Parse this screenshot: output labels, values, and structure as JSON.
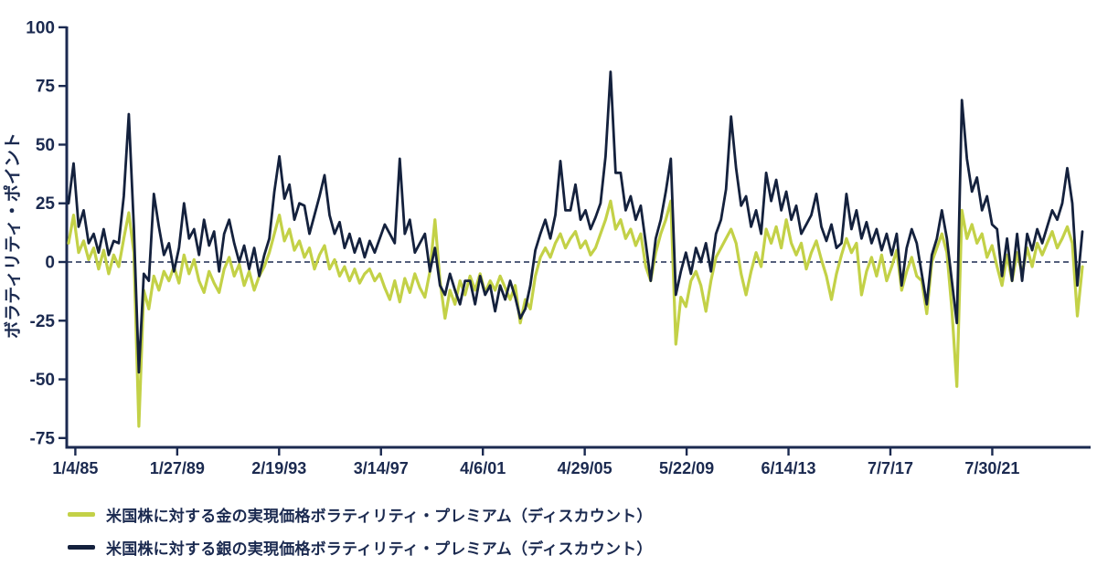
{
  "chart_data": {
    "type": "line",
    "title": "",
    "xlabel": "",
    "ylabel": "ボラティリティ・ポイント",
    "ylim": [
      -75,
      100
    ],
    "yticks": [
      100,
      75,
      50,
      25,
      0,
      -25,
      -50,
      -75
    ],
    "ytick_labels": [
      "100",
      "75",
      "50",
      "25",
      "0",
      "-25",
      "-50",
      "-75"
    ],
    "xtick_labels": [
      "1/4/85",
      "1/27/89",
      "2/19/93",
      "3/14/97",
      "4/6/01",
      "4/29/05",
      "5/22/09",
      "6/14/13",
      "7/7/17",
      "7/30/21"
    ],
    "xtick_years": [
      1985.27,
      1989.33,
      1993.39,
      1997.45,
      2001.51,
      2005.57,
      2009.63,
      2013.69,
      2017.75,
      2021.81
    ],
    "x_start_year": 1985.0,
    "x_step_years": 0.2,
    "grid": false,
    "zero_line_dashed": true,
    "legend_position": "bottom-left",
    "axis_color": "#1b2a50",
    "series": [
      {
        "name": "米国株に対する金の実現価格ボラティリティ・プレミアム（ディスカウント）",
        "color": "#c3d147",
        "values": [
          8,
          20,
          4,
          9,
          1,
          6,
          -3,
          5,
          -5,
          3,
          -2,
          10,
          21,
          4,
          -70,
          -12,
          -20,
          -6,
          -12,
          -4,
          -8,
          -2,
          -9,
          3,
          -5,
          1,
          -8,
          -13,
          -4,
          -9,
          -13,
          -3,
          2,
          -6,
          -1,
          -10,
          -4,
          -12,
          -6,
          -2,
          4,
          12,
          20,
          9,
          14,
          5,
          9,
          2,
          6,
          -3,
          3,
          7,
          -3,
          1,
          -6,
          -2,
          -8,
          -3,
          -9,
          -5,
          -3,
          -8,
          -5,
          -11,
          -16,
          -8,
          -17,
          -7,
          -13,
          -5,
          -11,
          -15,
          -4,
          18,
          -8,
          -24,
          -12,
          -18,
          -8,
          -14,
          -6,
          -12,
          -5,
          -13,
          -8,
          -12,
          -6,
          -11,
          -16,
          -10,
          -26,
          -16,
          -20,
          -6,
          2,
          6,
          2,
          8,
          12,
          6,
          10,
          13,
          6,
          9,
          3,
          6,
          12,
          18,
          26,
          14,
          18,
          10,
          14,
          7,
          12,
          -2,
          -8,
          4,
          12,
          18,
          26,
          -35,
          -15,
          -19,
          -8,
          -4,
          -10,
          -21,
          -8,
          2,
          6,
          10,
          14,
          8,
          -5,
          -14,
          -4,
          4,
          -2,
          14,
          8,
          15,
          6,
          18,
          8,
          3,
          8,
          -3,
          4,
          9,
          1,
          -6,
          -16,
          -5,
          3,
          10,
          4,
          8,
          -14,
          -4,
          2,
          -6,
          3,
          -8,
          -2,
          5,
          -12,
          -4,
          2,
          -6,
          -8,
          -22,
          0,
          6,
          12,
          4,
          -20,
          -53,
          22,
          10,
          16,
          8,
          12,
          2,
          7,
          -2,
          -10,
          3,
          -8,
          4,
          -5,
          6,
          -2,
          8,
          3,
          8,
          13,
          6,
          10,
          15,
          8,
          -23,
          -2
        ]
      },
      {
        "name": "米国株に対する銀の実現価格ボラティリティ・プレミアム（ディスカウント）",
        "color": "#14213d",
        "values": [
          25,
          42,
          15,
          22,
          8,
          12,
          4,
          14,
          3,
          9,
          8,
          28,
          63,
          15,
          -47,
          -5,
          -8,
          29,
          15,
          3,
          8,
          -4,
          6,
          25,
          10,
          14,
          3,
          18,
          7,
          13,
          -4,
          12,
          18,
          8,
          0,
          7,
          -3,
          6,
          -6,
          3,
          10,
          30,
          45,
          27,
          33,
          18,
          25,
          24,
          12,
          20,
          28,
          37,
          20,
          12,
          17,
          6,
          12,
          4,
          10,
          2,
          9,
          4,
          10,
          16,
          12,
          8,
          44,
          12,
          18,
          4,
          8,
          12,
          -4,
          6,
          -10,
          -14,
          -5,
          -12,
          -18,
          -8,
          -8,
          -18,
          -6,
          -14,
          -10,
          -21,
          -10,
          -16,
          -8,
          -15,
          -24,
          -20,
          -10,
          5,
          12,
          18,
          10,
          20,
          43,
          22,
          22,
          33,
          18,
          22,
          14,
          19,
          25,
          45,
          81,
          38,
          38,
          22,
          28,
          18,
          24,
          8,
          -8,
          10,
          18,
          30,
          44,
          -14,
          -4,
          4,
          -5,
          6,
          0,
          8,
          -4,
          12,
          18,
          31,
          62,
          40,
          24,
          28,
          15,
          22,
          12,
          38,
          26,
          35,
          22,
          30,
          18,
          24,
          12,
          16,
          20,
          29,
          15,
          9,
          16,
          6,
          8,
          29,
          14,
          22,
          10,
          17,
          8,
          14,
          5,
          12,
          3,
          12,
          -10,
          6,
          14,
          8,
          -5,
          -18,
          3,
          10,
          22,
          10,
          -8,
          -26,
          69,
          44,
          30,
          36,
          22,
          28,
          16,
          14,
          -6,
          10,
          -8,
          12,
          -8,
          12,
          5,
          14,
          8,
          15,
          22,
          18,
          25,
          40,
          25,
          -10,
          13
        ]
      }
    ]
  },
  "legend": {
    "items": [
      {
        "swatch_color": "#c3d147"
      },
      {
        "swatch_color": "#14213d"
      }
    ]
  }
}
